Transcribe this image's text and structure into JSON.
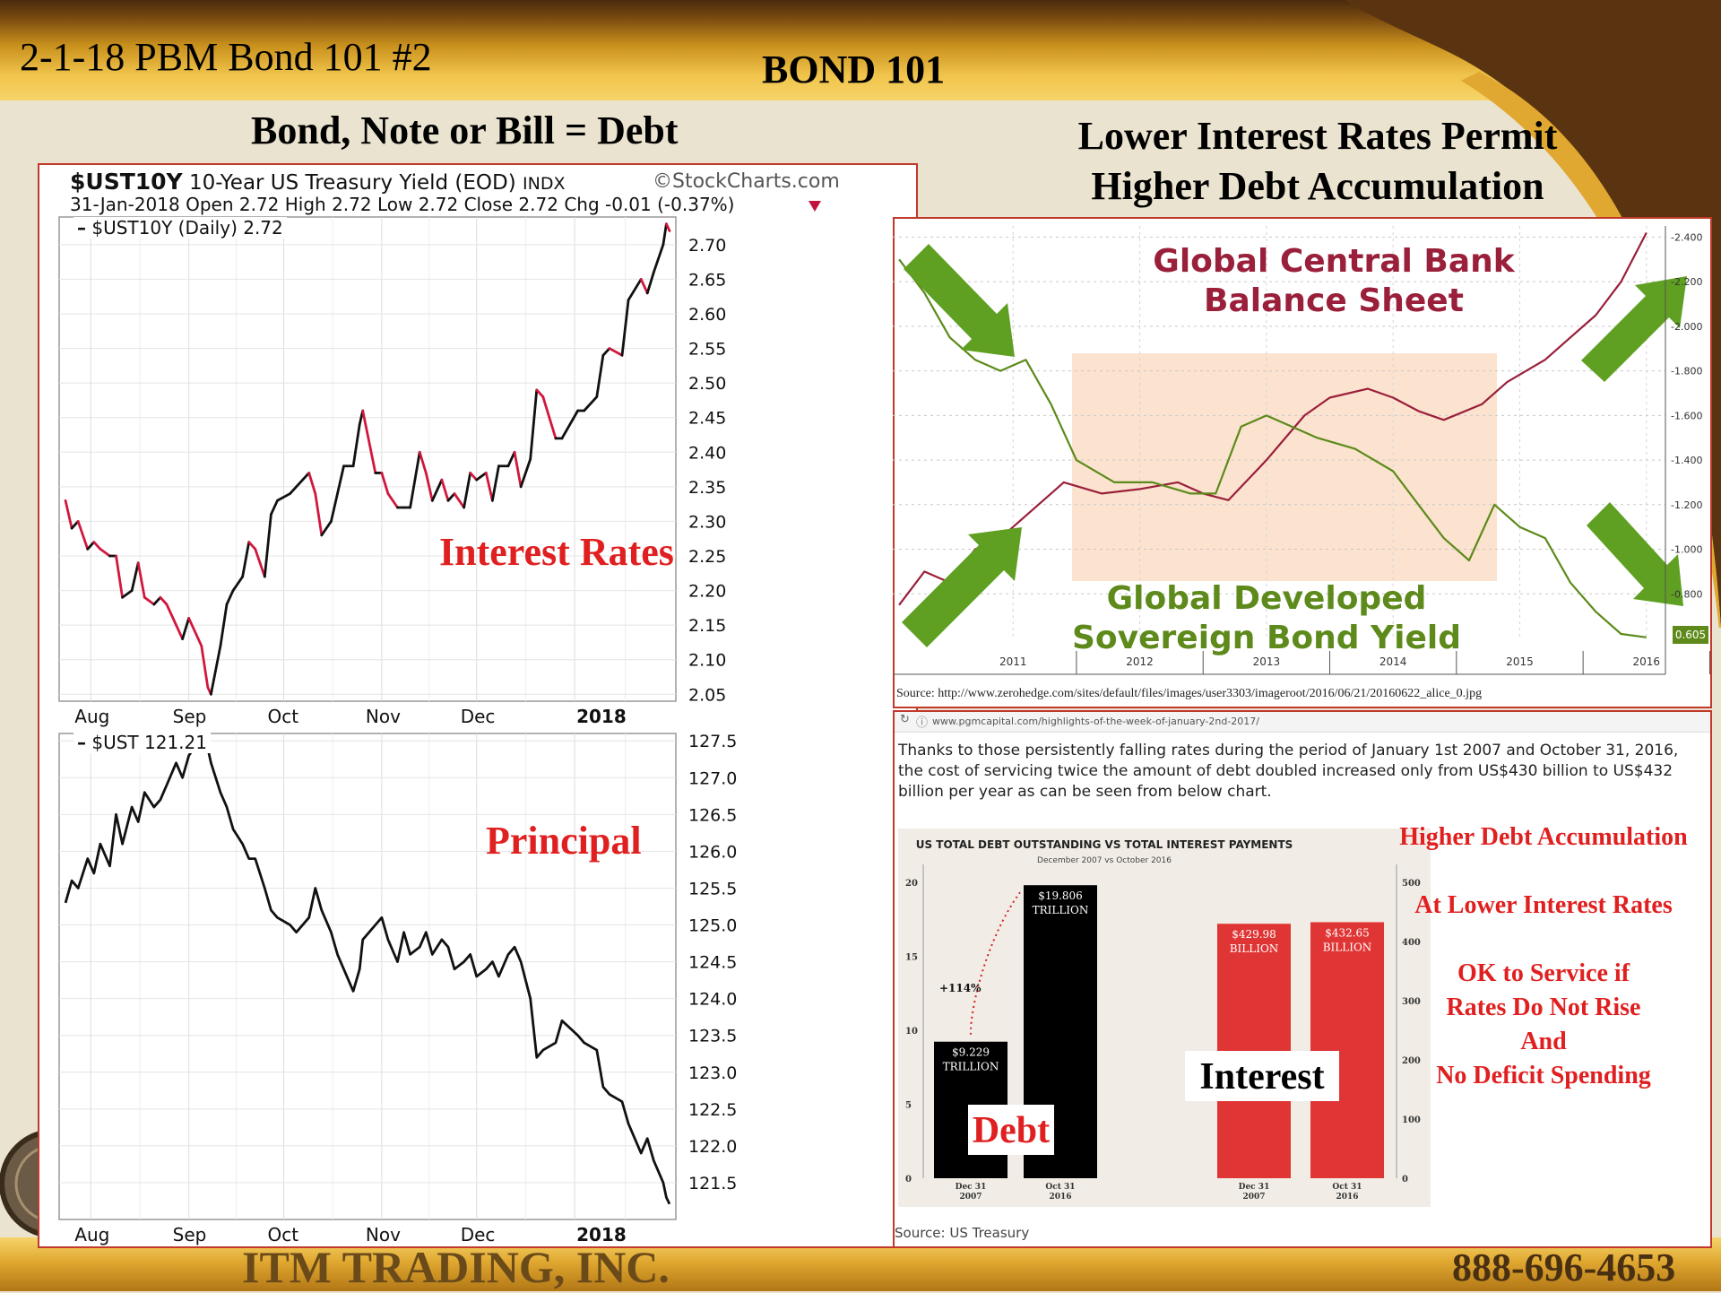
{
  "slide": {
    "label": "2-1-18 PBM Bond 101 #2",
    "title": "BOND 101",
    "left_heading": "Bond, Note or Bill = Debt",
    "right_heading_1": "Lower Interest Rates Permit",
    "right_heading_2": "Higher Debt Accumulation",
    "company": "ITM TRADING, INC.",
    "phone": "888-696-4653"
  },
  "colors": {
    "accent_red": "#e02020",
    "gold": "#f1c44b",
    "brown": "#5a3410",
    "green": "#5d8a1a",
    "maroon": "#9a1f3a"
  },
  "stockcharts": {
    "symbol": "$UST10Y",
    "description": "10-Year US Treasury Yield (EOD)",
    "exchange": "INDX",
    "brand": "©StockCharts.com",
    "ohlc": "31-Jan-2018  Open 2.72  High 2.72  Low 2.72  Close 2.72  Chg -0.01 (-0.37%)",
    "legend_top": "$UST10Y (Daily) 2.72",
    "legend_bottom": "$UST 121.21",
    "overlay_top": "Interest Rates",
    "overlay_bottom": "Principal"
  },
  "zerohedge": {
    "title_1": "Global Central Bank",
    "title_2": "Balance Sheet",
    "subtitle_1": "Global Developed",
    "subtitle_2": "Sovereign Bond Yield",
    "source": "Source:  http://www.zerohedge.com/sites/default/files/images/user3303/imageroot/2016/06/21/20160622_alice_0.jpg",
    "last_badge": "0.605"
  },
  "article": {
    "url": "www.pgmcapital.com/highlights-of-the-week-of-january-2nd-2017/",
    "text": "Thanks to those persistently falling rates during the period of January 1st 2007 and October 31, 2016, the cost of servicing twice the amount of debt doubled increased only from US$430 billion to US$432 billion per year as can be seen from below chart.",
    "source": "Source: US Treasury",
    "notes": [
      "Higher Debt Accumulation",
      "At Lower Interest Rates",
      "OK to Service if",
      "Rates Do Not Rise",
      "And",
      "No Deficit Spending"
    ]
  },
  "chart_data": [
    {
      "type": "line",
      "name": "ust10y_yield",
      "legend": "$UST10Y (Daily) 2.72",
      "x_ticks": [
        "Aug",
        "Sep",
        "Oct",
        "Nov",
        "Dec",
        "2018"
      ],
      "y_ticks": [
        2.05,
        2.1,
        2.15,
        2.2,
        2.25,
        2.3,
        2.35,
        2.4,
        2.45,
        2.5,
        2.55,
        2.6,
        2.65,
        2.7
      ],
      "ylim": [
        2.04,
        2.74
      ],
      "points": [
        [
          "2017-07-24",
          2.33
        ],
        [
          "2017-07-26",
          2.29
        ],
        [
          "2017-07-28",
          2.3
        ],
        [
          "2017-07-31",
          2.26
        ],
        [
          "2017-08-02",
          2.27
        ],
        [
          "2017-08-04",
          2.26
        ],
        [
          "2017-08-07",
          2.25
        ],
        [
          "2017-08-09",
          2.25
        ],
        [
          "2017-08-11",
          2.19
        ],
        [
          "2017-08-14",
          2.2
        ],
        [
          "2017-08-16",
          2.24
        ],
        [
          "2017-08-18",
          2.19
        ],
        [
          "2017-08-21",
          2.18
        ],
        [
          "2017-08-23",
          2.19
        ],
        [
          "2017-08-25",
          2.18
        ],
        [
          "2017-08-28",
          2.15
        ],
        [
          "2017-08-30",
          2.13
        ],
        [
          "2017-09-01",
          2.16
        ],
        [
          "2017-09-05",
          2.12
        ],
        [
          "2017-09-07",
          2.06
        ],
        [
          "2017-09-08",
          2.05
        ],
        [
          "2017-09-11",
          2.12
        ],
        [
          "2017-09-13",
          2.18
        ],
        [
          "2017-09-15",
          2.2
        ],
        [
          "2017-09-18",
          2.22
        ],
        [
          "2017-09-20",
          2.27
        ],
        [
          "2017-09-22",
          2.26
        ],
        [
          "2017-09-25",
          2.22
        ],
        [
          "2017-09-27",
          2.31
        ],
        [
          "2017-09-29",
          2.33
        ],
        [
          "2017-10-03",
          2.34
        ],
        [
          "2017-10-05",
          2.35
        ],
        [
          "2017-10-09",
          2.37
        ],
        [
          "2017-10-11",
          2.34
        ],
        [
          "2017-10-13",
          2.28
        ],
        [
          "2017-10-16",
          2.3
        ],
        [
          "2017-10-18",
          2.34
        ],
        [
          "2017-10-20",
          2.38
        ],
        [
          "2017-10-23",
          2.38
        ],
        [
          "2017-10-25",
          2.44
        ],
        [
          "2017-10-26",
          2.46
        ],
        [
          "2017-10-30",
          2.37
        ],
        [
          "2017-11-01",
          2.37
        ],
        [
          "2017-11-03",
          2.34
        ],
        [
          "2017-11-06",
          2.32
        ],
        [
          "2017-11-08",
          2.32
        ],
        [
          "2017-11-10",
          2.32
        ],
        [
          "2017-11-13",
          2.4
        ],
        [
          "2017-11-15",
          2.37
        ],
        [
          "2017-11-17",
          2.33
        ],
        [
          "2017-11-20",
          2.36
        ],
        [
          "2017-11-22",
          2.33
        ],
        [
          "2017-11-24",
          2.34
        ],
        [
          "2017-11-27",
          2.32
        ],
        [
          "2017-11-29",
          2.37
        ],
        [
          "2017-12-01",
          2.36
        ],
        [
          "2017-12-04",
          2.37
        ],
        [
          "2017-12-06",
          2.33
        ],
        [
          "2017-12-08",
          2.38
        ],
        [
          "2017-12-11",
          2.38
        ],
        [
          "2017-12-13",
          2.4
        ],
        [
          "2017-12-15",
          2.35
        ],
        [
          "2017-12-18",
          2.39
        ],
        [
          "2017-12-20",
          2.49
        ],
        [
          "2017-12-22",
          2.48
        ],
        [
          "2017-12-26",
          2.42
        ],
        [
          "2017-12-28",
          2.42
        ],
        [
          "2018-01-02",
          2.46
        ],
        [
          "2018-01-04",
          2.46
        ],
        [
          "2018-01-08",
          2.48
        ],
        [
          "2018-01-10",
          2.54
        ],
        [
          "2018-01-12",
          2.55
        ],
        [
          "2018-01-16",
          2.54
        ],
        [
          "2018-01-18",
          2.62
        ],
        [
          "2018-01-22",
          2.65
        ],
        [
          "2018-01-24",
          2.63
        ],
        [
          "2018-01-26",
          2.66
        ],
        [
          "2018-01-29",
          2.7
        ],
        [
          "2018-01-30",
          2.73
        ],
        [
          "2018-01-31",
          2.72
        ]
      ]
    },
    {
      "type": "line",
      "name": "ust_price",
      "legend": "$UST 121.21",
      "x_ticks": [
        "Aug",
        "Sep",
        "Oct",
        "Nov",
        "Dec",
        "2018"
      ],
      "y_ticks": [
        121.5,
        122.0,
        122.5,
        123.0,
        123.5,
        124.0,
        124.5,
        125.0,
        125.5,
        126.0,
        126.5,
        127.0,
        127.5
      ],
      "ylim": [
        121.0,
        127.6
      ],
      "points": [
        [
          "2017-07-24",
          125.3
        ],
        [
          "2017-07-26",
          125.6
        ],
        [
          "2017-07-28",
          125.5
        ],
        [
          "2017-07-31",
          125.9
        ],
        [
          "2017-08-02",
          125.7
        ],
        [
          "2017-08-04",
          126.1
        ],
        [
          "2017-08-07",
          125.8
        ],
        [
          "2017-08-09",
          126.5
        ],
        [
          "2017-08-11",
          126.1
        ],
        [
          "2017-08-14",
          126.6
        ],
        [
          "2017-08-16",
          126.4
        ],
        [
          "2017-08-18",
          126.8
        ],
        [
          "2017-08-21",
          126.6
        ],
        [
          "2017-08-23",
          126.7
        ],
        [
          "2017-08-25",
          126.9
        ],
        [
          "2017-08-28",
          127.2
        ],
        [
          "2017-08-30",
          127.0
        ],
        [
          "2017-09-01",
          127.3
        ],
        [
          "2017-09-05",
          127.55
        ],
        [
          "2017-09-07",
          127.4
        ],
        [
          "2017-09-08",
          127.2
        ],
        [
          "2017-09-11",
          126.8
        ],
        [
          "2017-09-13",
          126.6
        ],
        [
          "2017-09-15",
          126.3
        ],
        [
          "2017-09-18",
          126.1
        ],
        [
          "2017-09-20",
          125.9
        ],
        [
          "2017-09-22",
          125.9
        ],
        [
          "2017-09-25",
          125.5
        ],
        [
          "2017-09-27",
          125.2
        ],
        [
          "2017-09-29",
          125.1
        ],
        [
          "2017-10-03",
          125.0
        ],
        [
          "2017-10-05",
          124.9
        ],
        [
          "2017-10-09",
          125.1
        ],
        [
          "2017-10-11",
          125.5
        ],
        [
          "2017-10-13",
          125.2
        ],
        [
          "2017-10-16",
          124.9
        ],
        [
          "2017-10-18",
          124.6
        ],
        [
          "2017-10-20",
          124.4
        ],
        [
          "2017-10-23",
          124.1
        ],
        [
          "2017-10-25",
          124.4
        ],
        [
          "2017-10-26",
          124.8
        ],
        [
          "2017-10-30",
          125.0
        ],
        [
          "2017-11-01",
          125.1
        ],
        [
          "2017-11-03",
          124.8
        ],
        [
          "2017-11-06",
          124.5
        ],
        [
          "2017-11-08",
          124.9
        ],
        [
          "2017-11-10",
          124.6
        ],
        [
          "2017-11-13",
          124.7
        ],
        [
          "2017-11-15",
          124.9
        ],
        [
          "2017-11-17",
          124.6
        ],
        [
          "2017-11-20",
          124.8
        ],
        [
          "2017-11-22",
          124.7
        ],
        [
          "2017-11-24",
          124.4
        ],
        [
          "2017-11-27",
          124.5
        ],
        [
          "2017-11-29",
          124.6
        ],
        [
          "2017-12-01",
          124.3
        ],
        [
          "2017-12-04",
          124.4
        ],
        [
          "2017-12-06",
          124.5
        ],
        [
          "2017-12-08",
          124.3
        ],
        [
          "2017-12-11",
          124.6
        ],
        [
          "2017-12-13",
          124.7
        ],
        [
          "2017-12-15",
          124.5
        ],
        [
          "2017-12-18",
          124.0
        ],
        [
          "2017-12-20",
          123.2
        ],
        [
          "2017-12-22",
          123.3
        ],
        [
          "2017-12-26",
          123.4
        ],
        [
          "2017-12-28",
          123.7
        ],
        [
          "2018-01-02",
          123.5
        ],
        [
          "2018-01-04",
          123.4
        ],
        [
          "2018-01-08",
          123.3
        ],
        [
          "2018-01-10",
          122.8
        ],
        [
          "2018-01-12",
          122.7
        ],
        [
          "2018-01-16",
          122.6
        ],
        [
          "2018-01-18",
          122.3
        ],
        [
          "2018-01-22",
          121.9
        ],
        [
          "2018-01-24",
          122.1
        ],
        [
          "2018-01-26",
          121.8
        ],
        [
          "2018-01-29",
          121.5
        ],
        [
          "2018-01-30",
          121.3
        ],
        [
          "2018-01-31",
          121.21
        ]
      ]
    },
    {
      "type": "line",
      "name": "global_cb_balance_vs_yield",
      "x_ticks": [
        "2011",
        "2012",
        "2013",
        "2014",
        "2015",
        "2016"
      ],
      "right_y_ticks": [
        "2.400",
        "2.200",
        "2.000",
        "1.800",
        "1.600",
        "1.400",
        "1.200",
        "1.000",
        "0.800"
      ],
      "ylim": [
        0.6,
        2.45
      ],
      "series": [
        {
          "name": "Global Central Bank Balance Sheet",
          "points": [
            [
              2010.6,
              0.75
            ],
            [
              2010.8,
              0.9
            ],
            [
              2011.0,
              0.85
            ],
            [
              2011.2,
              1.0
            ],
            [
              2011.4,
              1.05
            ],
            [
              2011.6,
              1.15
            ],
            [
              2011.8,
              1.25
            ],
            [
              2011.9,
              1.3
            ],
            [
              2012.2,
              1.25
            ],
            [
              2012.5,
              1.27
            ],
            [
              2012.8,
              1.3
            ],
            [
              2013.0,
              1.25
            ],
            [
              2013.2,
              1.22
            ],
            [
              2013.5,
              1.4
            ],
            [
              2013.8,
              1.6
            ],
            [
              2014.0,
              1.68
            ],
            [
              2014.3,
              1.72
            ],
            [
              2014.5,
              1.68
            ],
            [
              2014.7,
              1.62
            ],
            [
              2014.9,
              1.58
            ],
            [
              2015.2,
              1.65
            ],
            [
              2015.4,
              1.75
            ],
            [
              2015.7,
              1.85
            ],
            [
              2015.9,
              1.95
            ],
            [
              2016.1,
              2.05
            ],
            [
              2016.3,
              2.2
            ],
            [
              2016.5,
              2.42
            ]
          ]
        },
        {
          "name": "Global Developed Sovereign Bond Yield",
          "points": [
            [
              2010.6,
              2.3
            ],
            [
              2010.8,
              2.15
            ],
            [
              2011.0,
              1.95
            ],
            [
              2011.2,
              1.85
            ],
            [
              2011.4,
              1.8
            ],
            [
              2011.6,
              1.85
            ],
            [
              2011.8,
              1.65
            ],
            [
              2012.0,
              1.4
            ],
            [
              2012.3,
              1.3
            ],
            [
              2012.6,
              1.3
            ],
            [
              2012.9,
              1.25
            ],
            [
              2013.1,
              1.25
            ],
            [
              2013.3,
              1.55
            ],
            [
              2013.5,
              1.6
            ],
            [
              2013.7,
              1.55
            ],
            [
              2013.9,
              1.5
            ],
            [
              2014.2,
              1.45
            ],
            [
              2014.5,
              1.35
            ],
            [
              2014.7,
              1.2
            ],
            [
              2014.9,
              1.05
            ],
            [
              2015.1,
              0.95
            ],
            [
              2015.3,
              1.2
            ],
            [
              2015.5,
              1.1
            ],
            [
              2015.7,
              1.05
            ],
            [
              2015.9,
              0.85
            ],
            [
              2016.1,
              0.72
            ],
            [
              2016.3,
              0.62
            ],
            [
              2016.5,
              0.605
            ]
          ]
        }
      ]
    },
    {
      "type": "bar",
      "name": "us_debt_vs_interest",
      "title": "US TOTAL DEBT OUTSTANDING VS TOTAL INTEREST PAYMENTS",
      "subtitle": "December 2007 vs October 2016",
      "categories": [
        "Dec 31 2007",
        "Oct 31 2016"
      ],
      "change_label": "+114%",
      "left_axis_ticks": [
        "0",
        "5",
        "10",
        "15",
        "20"
      ],
      "right_axis_ticks": [
        "0",
        "100",
        "200",
        "300",
        "400",
        "500"
      ],
      "series": [
        {
          "name": "Debt",
          "unit": "Trillion",
          "values": [
            9.229,
            19.806
          ],
          "labels": [
            "$9.229 TRILLION",
            "$19.806 TRILLION"
          ],
          "color": "#000000"
        },
        {
          "name": "Interest",
          "unit": "Billion",
          "values": [
            429.98,
            432.65
          ],
          "labels": [
            "$429.98 BILLION",
            "$432.65 BILLION"
          ],
          "color": "#e03535"
        }
      ]
    }
  ]
}
